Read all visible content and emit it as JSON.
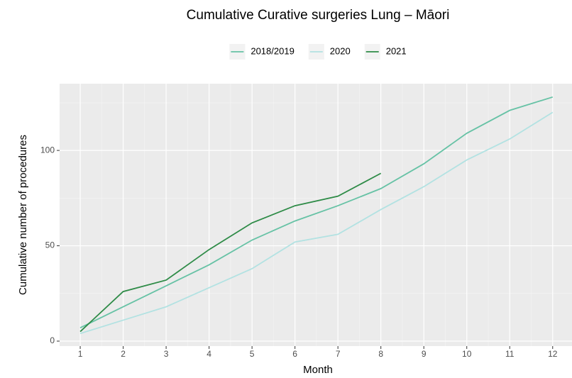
{
  "chart_data": {
    "type": "line",
    "title": "Cumulative Curative surgeries Lung – Māori",
    "x_label": "Month",
    "y_label": "Cumulative number of procedures",
    "x": [
      1,
      2,
      3,
      4,
      5,
      6,
      7,
      8,
      9,
      10,
      11,
      12
    ],
    "series": [
      {
        "name": "2018/2019",
        "color": "#66c2a5",
        "values": [
          7,
          18,
          29,
          40,
          53,
          63,
          71,
          80,
          93,
          109,
          121,
          128
        ]
      },
      {
        "name": "2020",
        "color": "#b2e2e2",
        "values": [
          4,
          11,
          18,
          28,
          38,
          52,
          56,
          69,
          81,
          95,
          106,
          120
        ]
      },
      {
        "name": "2021",
        "color": "#2e8b47",
        "values": [
          5,
          26,
          32,
          48,
          62,
          71,
          76,
          88,
          null,
          null,
          null,
          null
        ]
      }
    ],
    "xlim": [
      0.52,
      12.45
    ],
    "xticks": [
      1,
      2,
      3,
      4,
      5,
      6,
      7,
      8,
      9,
      10,
      11,
      12
    ],
    "ylim": [
      -2.6,
      135
    ],
    "yticks": [
      0,
      50,
      100
    ],
    "grid": true,
    "legend_position": "top"
  }
}
